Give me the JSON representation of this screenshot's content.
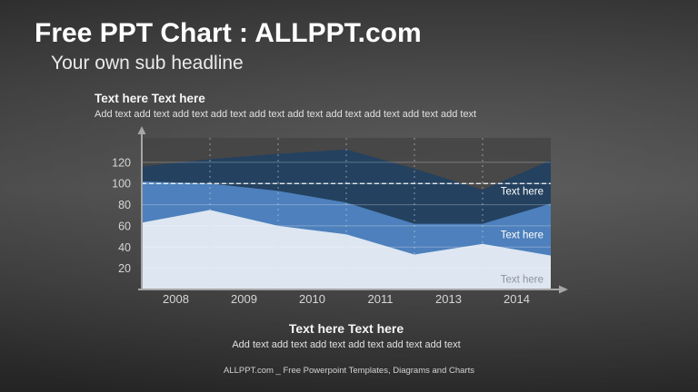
{
  "slide": {
    "title": "Free PPT Chart : ALLPPT.com",
    "subtitle": "Your own sub headline",
    "footer_credit": "ALLPPT.com _ Free Powerpoint Templates, Diagrams and Charts"
  },
  "top_note": {
    "heading": "Text here Text here",
    "body": "Add text add text add text add text add text add text add text add text add text add text"
  },
  "bottom_note": {
    "heading": "Text here Text here",
    "body": "Add text add text add text add text add text add text"
  },
  "chart_data": {
    "type": "area",
    "mode": "overlapping-areas-from-zero",
    "x_categories": [
      "2008",
      "2009",
      "2010",
      "2011",
      "2013",
      "2014"
    ],
    "y_ticks": [
      20,
      40,
      60,
      80,
      100,
      120
    ],
    "ylim": [
      0,
      143
    ],
    "reference_line": {
      "value": 100,
      "style": "dashed-white"
    },
    "grid": {
      "horizontal": true,
      "vertical": "dashed-at-category-boundaries"
    },
    "legend_position": "right-inside-areas",
    "series": [
      {
        "name": "Text here",
        "depth": "back",
        "fill": "#24415f",
        "label_color": "#ffffff",
        "label_value": 93,
        "values": [
          116,
          123,
          128,
          132,
          114,
          94,
          122
        ]
      },
      {
        "name": "Text here",
        "depth": "middle",
        "fill": "#4d80bc",
        "label_color": "#ffffff",
        "label_value": 52,
        "values": [
          102,
          100,
          93,
          82,
          62,
          62,
          81
        ]
      },
      {
        "name": "Text here",
        "depth": "front",
        "fill": "#dde6f1",
        "label_color": "#8d939d",
        "label_value": 10,
        "values": [
          63,
          75,
          60,
          52,
          33,
          43,
          32
        ]
      }
    ],
    "axis_color": "#a6a6a6",
    "tick_label_color": "#d6d6d6",
    "plot_background": "#434343"
  }
}
